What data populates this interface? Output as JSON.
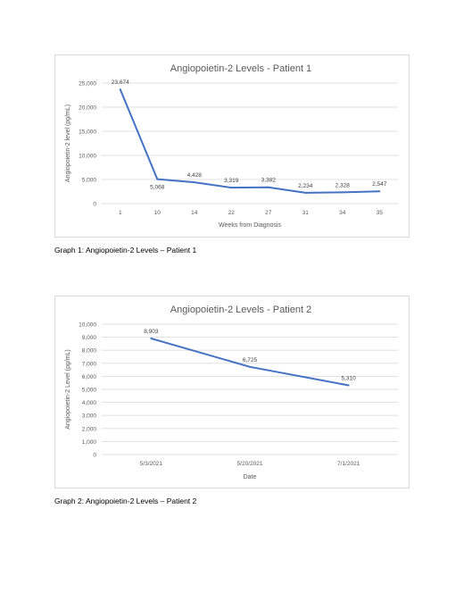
{
  "chart_data": [
    {
      "type": "line",
      "title": "Angiopoietin-2 Levels - Patient 1",
      "xlabel": "Weeks from Diagnosis",
      "ylabel": "Angiopoietin-2 level (pg/mL)",
      "categories": [
        "1",
        "10",
        "14",
        "22",
        "27",
        "31",
        "34",
        "35"
      ],
      "series": [
        {
          "values": [
            23674,
            5068,
            4428,
            3319,
            3382,
            2234,
            2328,
            2547
          ]
        }
      ],
      "data_labels": [
        "23,674",
        "5,068",
        "4,428",
        "3,319",
        "3,382",
        "2,234",
        "2,328",
        "2,547"
      ],
      "yticks": [
        "0",
        "5,000",
        "10,000",
        "15,000",
        "20,000",
        "25,000"
      ],
      "ylim": [
        0,
        25000
      ],
      "grid": true,
      "legend": "none",
      "line_color": "#4472c4"
    },
    {
      "type": "line",
      "title": "Angiopoietin-2 Levels - Patient 2",
      "xlabel": "Date",
      "ylabel": "Angiopoietin-2 Level (pg/mL)",
      "categories": [
        "5/3/2021",
        "5/20/2021",
        "7/1/2021"
      ],
      "series": [
        {
          "values": [
            8903,
            6725,
            5310
          ]
        }
      ],
      "data_labels": [
        "8,903",
        "6,725",
        "5,310"
      ],
      "yticks": [
        "0",
        "1,000",
        "2,000",
        "3,000",
        "4,000",
        "5,000",
        "6,000",
        "7,000",
        "8,000",
        "9,000",
        "10,000"
      ],
      "ylim": [
        0,
        10000
      ],
      "grid": true,
      "legend": "none",
      "line_color": "#4472c4"
    }
  ],
  "captions": {
    "graph1": "Graph 1: Angiopoietin-2 Levels – Patient 1",
    "graph2": "Graph 2: Angiopoietin-2 Levels – Patient 2"
  }
}
